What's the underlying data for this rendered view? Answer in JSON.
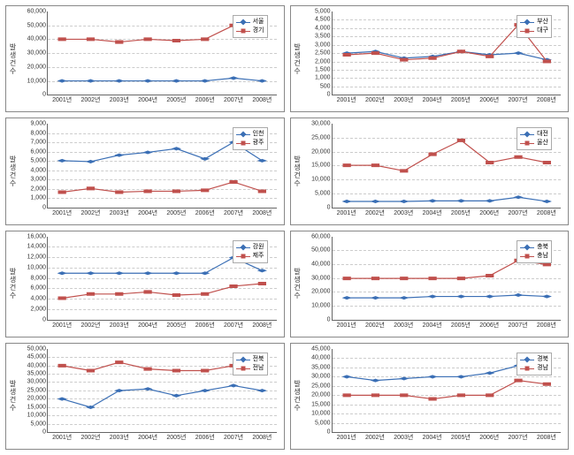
{
  "global": {
    "ylabel": "발생건수",
    "categories": [
      "2001년",
      "2002년",
      "2003년",
      "2004년",
      "2005년",
      "2006년",
      "2007년",
      "2008년"
    ],
    "colors": {
      "blue": "#3b6fb5",
      "red": "#c0504d",
      "grid": "#cccccc",
      "axis": "#666666"
    },
    "marker_size": 5,
    "line_width": 1.2
  },
  "charts": [
    {
      "ylim": [
        0,
        60000
      ],
      "ytick_step": 10000,
      "series": [
        {
          "name": "서울",
          "color": "blue",
          "marker": "diamond",
          "values": [
            10000,
            10000,
            10000,
            10000,
            10000,
            10000,
            12000,
            10000
          ]
        },
        {
          "name": "경기",
          "color": "red",
          "marker": "square",
          "values": [
            40000,
            40000,
            38000,
            40000,
            39000,
            40000,
            50000,
            44000
          ]
        }
      ]
    },
    {
      "ylim": [
        0,
        5000
      ],
      "ytick_step": 500,
      "series": [
        {
          "name": "부산",
          "color": "blue",
          "marker": "diamond",
          "values": [
            2500,
            2600,
            2200,
            2300,
            2600,
            2400,
            2500,
            2100
          ]
        },
        {
          "name": "대구",
          "color": "red",
          "marker": "square",
          "values": [
            2400,
            2500,
            2100,
            2200,
            2600,
            2300,
            4200,
            2000
          ]
        }
      ]
    },
    {
      "ylim": [
        0,
        9000
      ],
      "ytick_step": 1000,
      "series": [
        {
          "name": "인천",
          "color": "blue",
          "marker": "diamond",
          "values": [
            5000,
            4900,
            5600,
            5900,
            6300,
            5200,
            7000,
            5000
          ]
        },
        {
          "name": "광주",
          "color": "red",
          "marker": "square",
          "values": [
            1600,
            2000,
            1600,
            1700,
            1700,
            1800,
            2700,
            1700
          ]
        }
      ]
    },
    {
      "ylim": [
        0,
        30000
      ],
      "ytick_step": 5000,
      "series": [
        {
          "name": "대전",
          "color": "blue",
          "marker": "diamond",
          "values": [
            2000,
            2000,
            2000,
            2200,
            2200,
            2200,
            3500,
            2000
          ]
        },
        {
          "name": "울산",
          "color": "red",
          "marker": "square",
          "values": [
            15000,
            15000,
            13000,
            19000,
            24000,
            16000,
            18000,
            16000
          ]
        }
      ]
    },
    {
      "ylim": [
        0,
        16000
      ],
      "ytick_step": 2000,
      "series": [
        {
          "name": "강원",
          "color": "blue",
          "marker": "diamond",
          "values": [
            9000,
            9000,
            9000,
            9000,
            9000,
            9000,
            12000,
            9500
          ]
        },
        {
          "name": "제주",
          "color": "red",
          "marker": "square",
          "values": [
            4200,
            5000,
            5000,
            5400,
            4800,
            5000,
            6500,
            7000
          ]
        }
      ]
    },
    {
      "ylim": [
        0,
        60000
      ],
      "ytick_step": 10000,
      "series": [
        {
          "name": "충북",
          "color": "blue",
          "marker": "diamond",
          "values": [
            16000,
            16000,
            16000,
            17000,
            17000,
            17000,
            18000,
            17000
          ]
        },
        {
          "name": "충남",
          "color": "red",
          "marker": "square",
          "values": [
            30000,
            30000,
            30000,
            30000,
            30000,
            32000,
            43000,
            40000
          ]
        }
      ]
    },
    {
      "ylim": [
        0,
        50000
      ],
      "ytick_step": 5000,
      "series": [
        {
          "name": "전북",
          "color": "blue",
          "marker": "diamond",
          "values": [
            20000,
            15000,
            25000,
            26000,
            22000,
            25000,
            28000,
            25000
          ]
        },
        {
          "name": "전남",
          "color": "red",
          "marker": "square",
          "values": [
            40000,
            37000,
            42000,
            38000,
            37000,
            37000,
            40000,
            36000
          ]
        }
      ]
    },
    {
      "ylim": [
        0,
        45000
      ],
      "ytick_step": 5000,
      "series": [
        {
          "name": "경북",
          "color": "blue",
          "marker": "diamond",
          "values": [
            30000,
            28000,
            29000,
            30000,
            30000,
            32000,
            36000,
            32000
          ]
        },
        {
          "name": "경남",
          "color": "red",
          "marker": "square",
          "values": [
            20000,
            20000,
            20000,
            18000,
            20000,
            20000,
            28000,
            26000
          ]
        }
      ]
    }
  ]
}
